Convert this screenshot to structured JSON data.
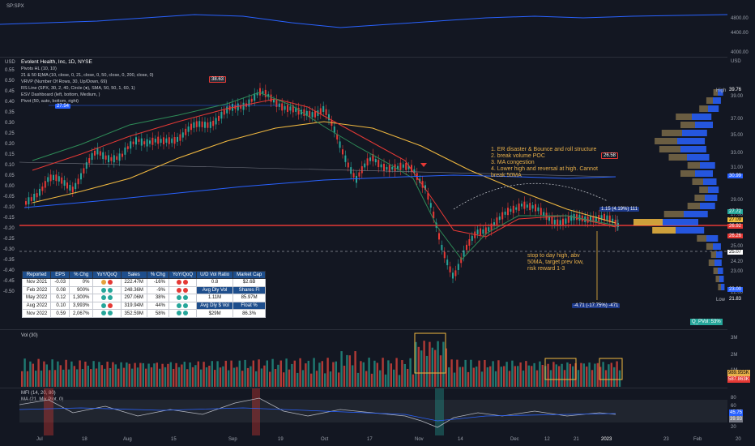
{
  "top_pane": {
    "symbol": "SP:SPX",
    "scale_labels": [
      "4800.00",
      "4400.00",
      "4000.00"
    ]
  },
  "main_pane": {
    "currency": "USD",
    "currency_right": "USD",
    "title": "Evolent Health, Inc, 1D, NYSE",
    "indicators": [
      "Pivots HL (10, 10)",
      "21 & 50 E|MA (10, close, 0, 21, close, 0, 50, close, 0, 200, close, 0)",
      "VRVP (Number Of Rows, 30, Up/Down, 69)",
      "RS Line (SPX, 30, 2, 40, Circle (●), SMA, 50, 50, 1, 60, 1)",
      "ESV Dashboard (left, bottom, Medium, )",
      "Pivot (50, auto, bottom, right)"
    ],
    "left_scale": [
      "0.55",
      "0.50",
      "0.45",
      "0.40",
      "0.35",
      "0.30",
      "0.25",
      "0.20",
      "0.15",
      "0.10",
      "0.05",
      "0.00",
      "-0.05",
      "-0.10",
      "-0.15",
      "-0.20",
      "-0.25",
      "-0.30",
      "-0.35",
      "-0.40",
      "-0.45",
      "-0.50"
    ],
    "right_scale": [
      "39.00",
      "37.00",
      "35.00",
      "33.00",
      "31.00",
      "29.00",
      "27.00",
      "25.00",
      "24.20",
      "23.00",
      "22.00"
    ],
    "price_tags": [
      {
        "text": "39.76",
        "bg": "#131722",
        "fg": "#ffffff"
      },
      {
        "text": "30.99",
        "bg": "#2962ff",
        "fg": "#ffffff"
      },
      {
        "text": "27.72",
        "bg": "#26a69a",
        "fg": "#ffffff"
      },
      {
        "text": "27.09",
        "bg": "#f0c040",
        "fg": "#000000"
      },
      {
        "text": "26.92",
        "bg": "#e53935",
        "fg": "#ffffff"
      },
      {
        "text": "26.26",
        "bg": "#e53935",
        "fg": "#ffffff"
      },
      {
        "text": "25.07",
        "bg": "#ffffff",
        "fg": "#000000"
      },
      {
        "text": "23.00",
        "bg": "#2962ff",
        "fg": "#ffffff"
      },
      {
        "text": "21.83",
        "bg": "#131722",
        "fg": "#ffffff"
      }
    ],
    "high_label": "High",
    "low_label": "Low",
    "poc_label": "Q_PVol: 53%",
    "chart_tags": [
      {
        "text": "38.63"
      },
      {
        "text": "27.54"
      },
      {
        "text": "26.58"
      },
      {
        "text": "1.15 (4.19%) 111"
      },
      {
        "text": "-4.71 (-17.75%) -471"
      }
    ],
    "notes_top": "1. ER disaster & Bounce and roll structure\n2. break volume POC\n3. MA congestion\n4. Lower high and reversal at high. Cannot\nbreak 50MA",
    "notes_bottom": "stop to day high, abv\n50MA, target prev low,\nrisk reward 1-3"
  },
  "dashboard": {
    "headers": [
      "Reported",
      "EPS",
      "% Chg",
      "YoY/QoQ",
      "Sales",
      "% Chg",
      "YoY/QoQ",
      "U/D Vol Ratio",
      "Market Cap"
    ],
    "rows": [
      {
        "reported": "Nov 2021",
        "eps": "-0.03",
        "eps_chg": "0%",
        "eps_dots": [
          "#e6a23c",
          "#e53935"
        ],
        "sales": "222.47M",
        "sales_chg": "-16%",
        "sales_dots": [
          "#e53935",
          "#e53935"
        ],
        "k": "0.8",
        "v": "$2.6B",
        "k_dark": false,
        "v_dark": false
      },
      {
        "reported": "Feb 2022",
        "eps": "0.08",
        "eps_chg": "900%",
        "eps_dots": [
          "#26a69a",
          "#26a69a"
        ],
        "sales": "248.36M",
        "sales_chg": "-9%",
        "sales_dots": [
          "#e53935",
          "#e53935"
        ],
        "k": "Avg Dly Vol",
        "v": "Shares Fl",
        "k_dark": true,
        "v_dark": true
      },
      {
        "reported": "May 2022",
        "eps": "0.12",
        "eps_chg": "1,300%",
        "eps_dots": [
          "#26a69a",
          "#26a69a"
        ],
        "sales": "297.06M",
        "sales_chg": "38%",
        "sales_dots": [
          "#26a69a",
          "#26a69a"
        ],
        "k": "1.11M",
        "v": "85.97M",
        "k_dark": false,
        "v_dark": false
      },
      {
        "reported": "Aug 2022",
        "eps": "0.10",
        "eps_chg": "3,993%",
        "eps_dots": [
          "#26a69a",
          "#e53935"
        ],
        "sales": "319.94M",
        "sales_chg": "44%",
        "sales_dots": [
          "#26a69a",
          "#26a69a"
        ],
        "k": "Avg Dly $ Vol",
        "v": "Float %",
        "k_dark": true,
        "v_dark": true
      },
      {
        "reported": "Nov 2022",
        "eps": "0.59",
        "eps_chg": "2,067%",
        "eps_dots": [
          "#26a69a",
          "#26a69a"
        ],
        "sales": "352.59M",
        "sales_chg": "58%",
        "sales_dots": [
          "#26a69a",
          "#26a69a"
        ],
        "k": "$29M",
        "v": "86.3%",
        "k_dark": false,
        "v_dark": false
      }
    ]
  },
  "volume_pane": {
    "title": "Vol (30)",
    "scale": [
      "3M",
      "2M",
      "1M"
    ],
    "tags": [
      {
        "text": "989.955K"
      },
      {
        "text": "587.863K"
      }
    ]
  },
  "mfi_pane": {
    "title": "MFI (14, 20, 80)",
    "subtitle": "MA (21, Mix Plot, 0)",
    "scale": [
      "80",
      "60",
      "40",
      "20"
    ],
    "tags": [
      {
        "text": "45.75"
      },
      {
        "text": "39.93"
      }
    ]
  },
  "x_axis": [
    "Jul",
    "18",
    "Aug",
    "15",
    "Sep",
    "19",
    "Oct",
    "17",
    "Nov",
    "14",
    "Dec",
    "12",
    "21",
    "2023",
    "23",
    "Feb",
    "20"
  ],
  "colors": {
    "up": "#26a69a",
    "down": "#e53935",
    "ema21": "#2e8b57",
    "ema50": "#e53935",
    "ema200": "#f0b840",
    "rs": "#2962ff"
  }
}
